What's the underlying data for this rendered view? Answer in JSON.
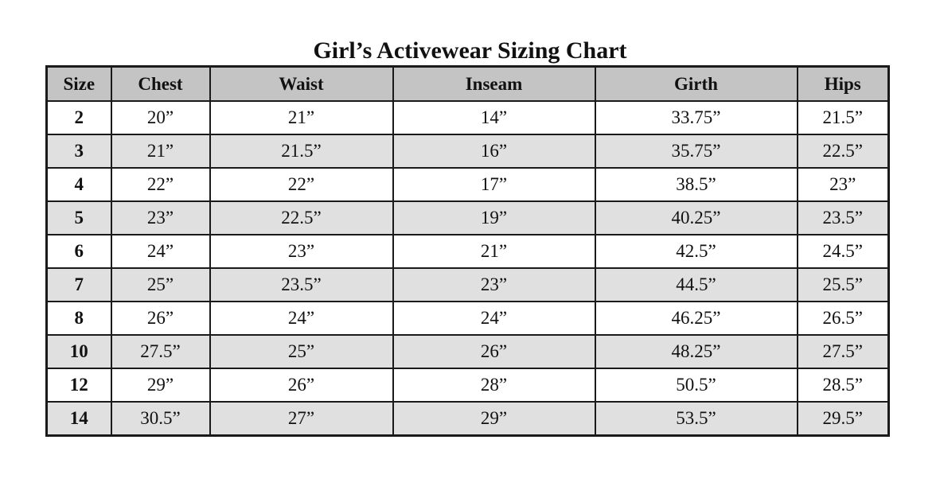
{
  "chart_data": {
    "type": "table",
    "title": "Girl’s Activewear Sizing Chart",
    "columns": [
      "Size",
      "Chest",
      "Waist",
      "Inseam",
      "Girth",
      "Hips"
    ],
    "rows": [
      [
        "2",
        "20”",
        "21”",
        "14”",
        "33.75”",
        "21.5”"
      ],
      [
        "3",
        "21”",
        "21.5”",
        "16”",
        "35.75”",
        "22.5”"
      ],
      [
        "4",
        "22”",
        "22”",
        "17”",
        "38.5”",
        "23”"
      ],
      [
        "5",
        "23”",
        "22.5”",
        "19”",
        "40.25”",
        "23.5”"
      ],
      [
        "6",
        "24”",
        "23”",
        "21”",
        "42.5”",
        "24.5”"
      ],
      [
        "7",
        "25”",
        "23.5”",
        "23”",
        "44.5”",
        "25.5”"
      ],
      [
        "8",
        "26”",
        "24”",
        "24”",
        "46.25”",
        "26.5”"
      ],
      [
        "10",
        "27.5”",
        "25”",
        "26”",
        "48.25”",
        "27.5”"
      ],
      [
        "12",
        "29”",
        "26”",
        "28”",
        "50.5”",
        "28.5”"
      ],
      [
        "14",
        "30.5”",
        "27”",
        "29”",
        "53.5”",
        "29.5”"
      ]
    ]
  },
  "colors": {
    "header_bg": "#c4c4c4",
    "shaded_row_bg": "#e0e0e0",
    "plain_row_bg": "#ffffff",
    "border": "#1a1a1a"
  }
}
